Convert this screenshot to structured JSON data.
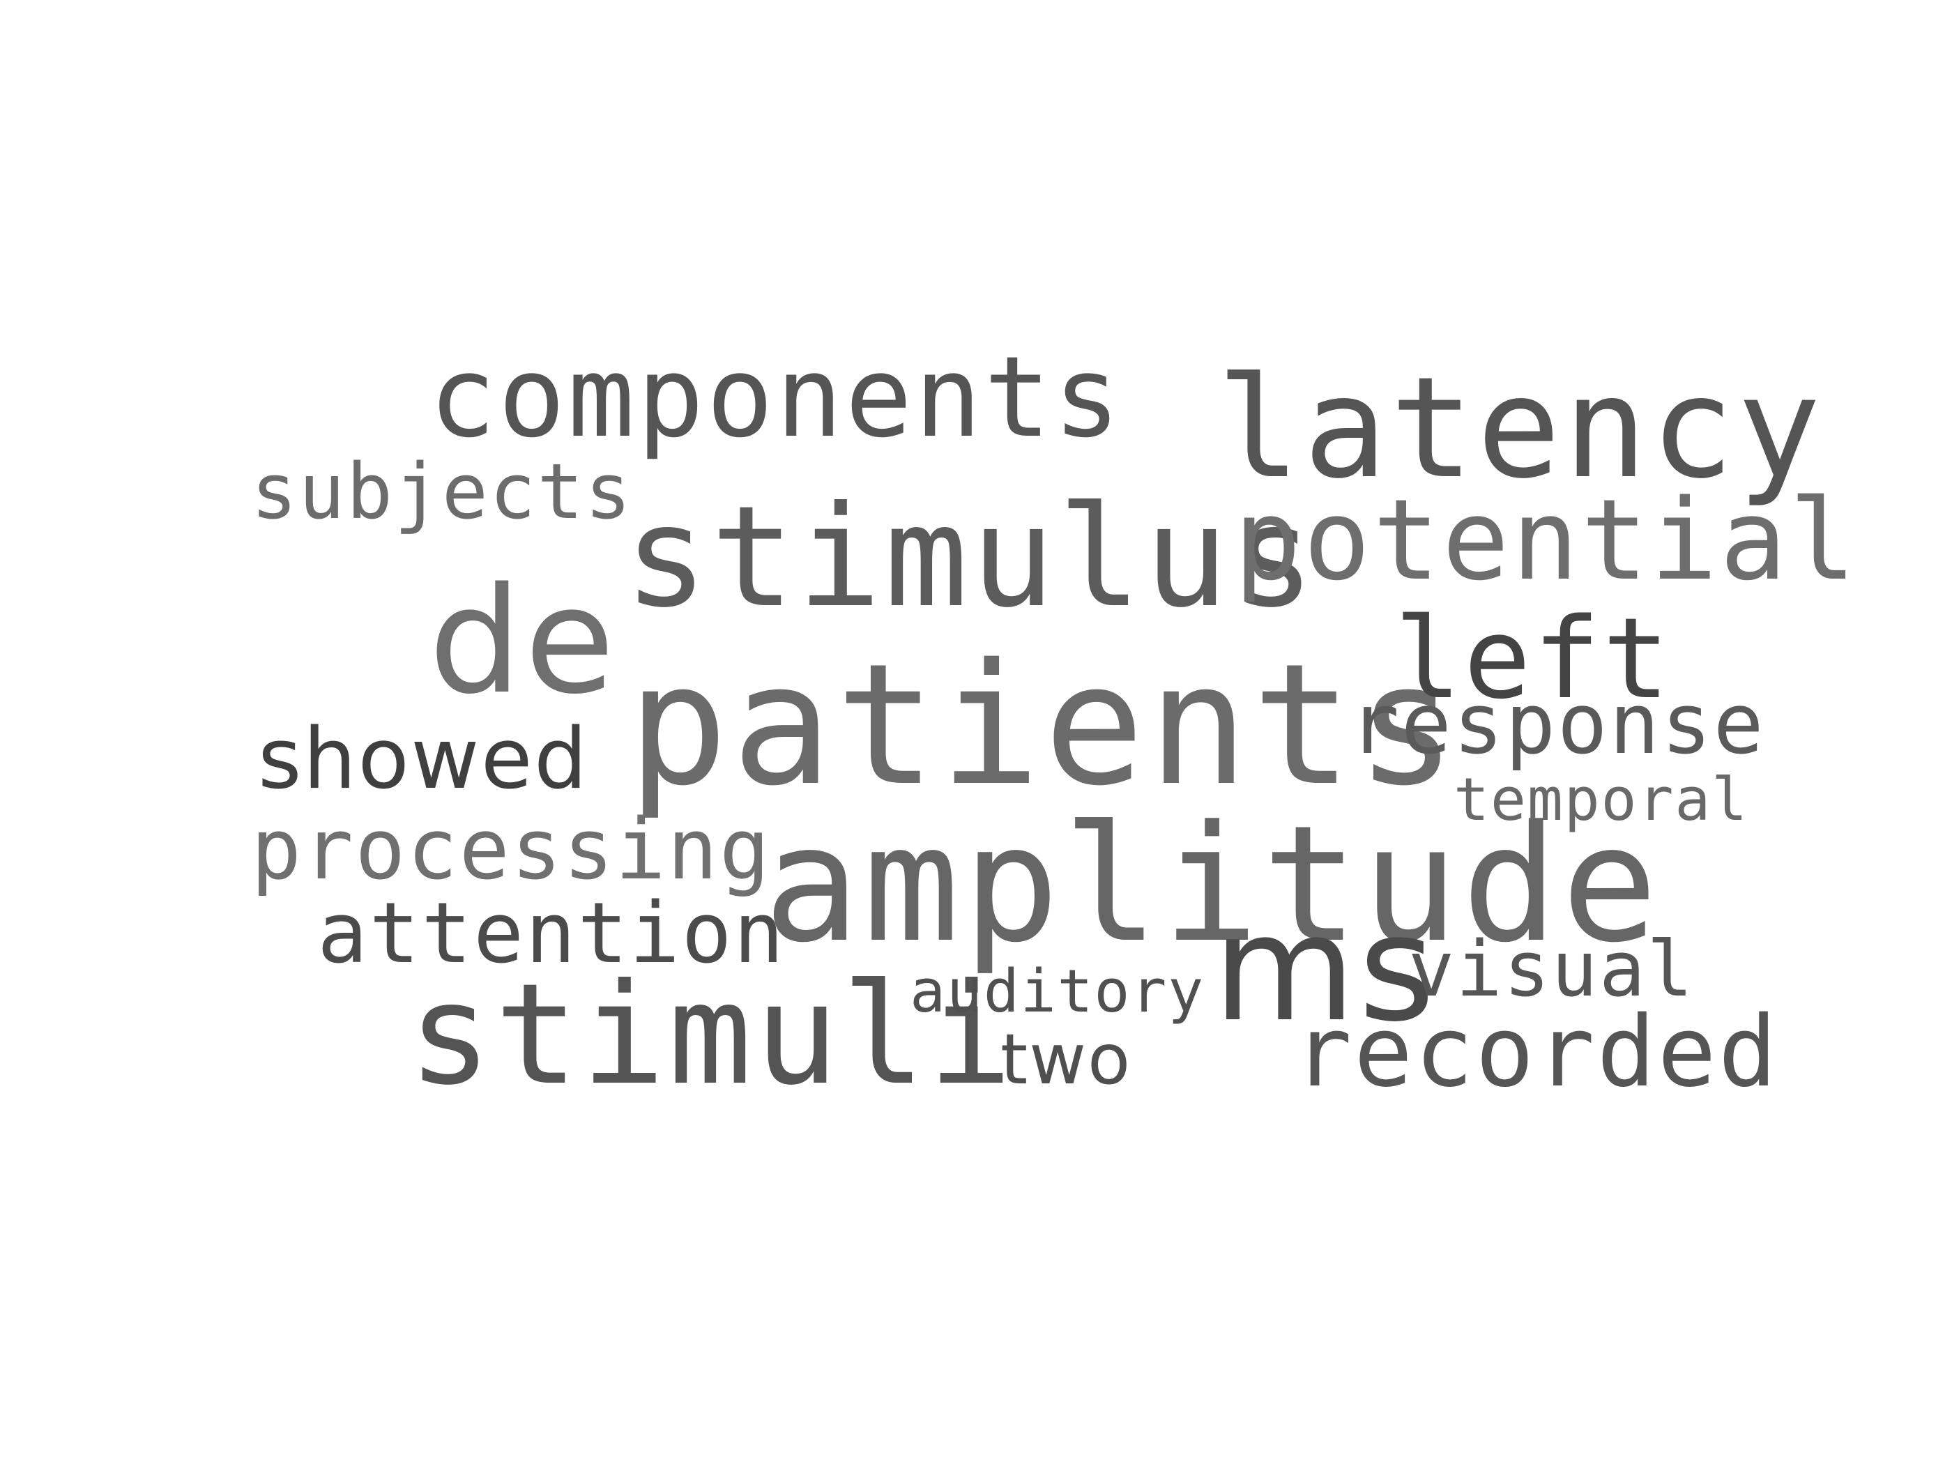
{
  "word_cloud": {
    "background": "#ffffff",
    "words": [
      {
        "key": "patients",
        "text": "patients",
        "color": "#6b6b6b"
      },
      {
        "key": "amplitude",
        "text": "amplitude",
        "color": "#666666"
      },
      {
        "key": "stimulus",
        "text": "stimulus",
        "color": "#5c5c5c"
      },
      {
        "key": "latency",
        "text": "latency",
        "color": "#555555"
      },
      {
        "key": "stimuli",
        "text": "stimuli",
        "color": "#545454"
      },
      {
        "key": "components",
        "text": "components",
        "color": "#555555"
      },
      {
        "key": "potential",
        "text": "potential",
        "color": "#6e6e6e"
      },
      {
        "key": "de",
        "text": "de",
        "color": "#6f6f6f"
      },
      {
        "key": "left",
        "text": "left",
        "color": "#444444"
      },
      {
        "key": "ms",
        "text": "ms",
        "color": "#4a4a4a"
      },
      {
        "key": "recorded",
        "text": "recorded",
        "color": "#555555"
      },
      {
        "key": "response",
        "text": "response",
        "color": "#5a5a5a"
      },
      {
        "key": "showed",
        "text": "showed",
        "color": "#3f3f3f"
      },
      {
        "key": "processing",
        "text": "processing",
        "color": "#707070"
      },
      {
        "key": "attention",
        "text": "attention",
        "color": "#4b4b4b"
      },
      {
        "key": "subjects",
        "text": "subjects",
        "color": "#6c6c6c"
      },
      {
        "key": "visual",
        "text": "visual",
        "color": "#565656"
      },
      {
        "key": "two",
        "text": "two",
        "color": "#4f4f4f"
      },
      {
        "key": "auditory",
        "text": "auditory",
        "color": "#505050"
      },
      {
        "key": "temporal",
        "text": "temporal",
        "color": "#696969"
      }
    ]
  }
}
